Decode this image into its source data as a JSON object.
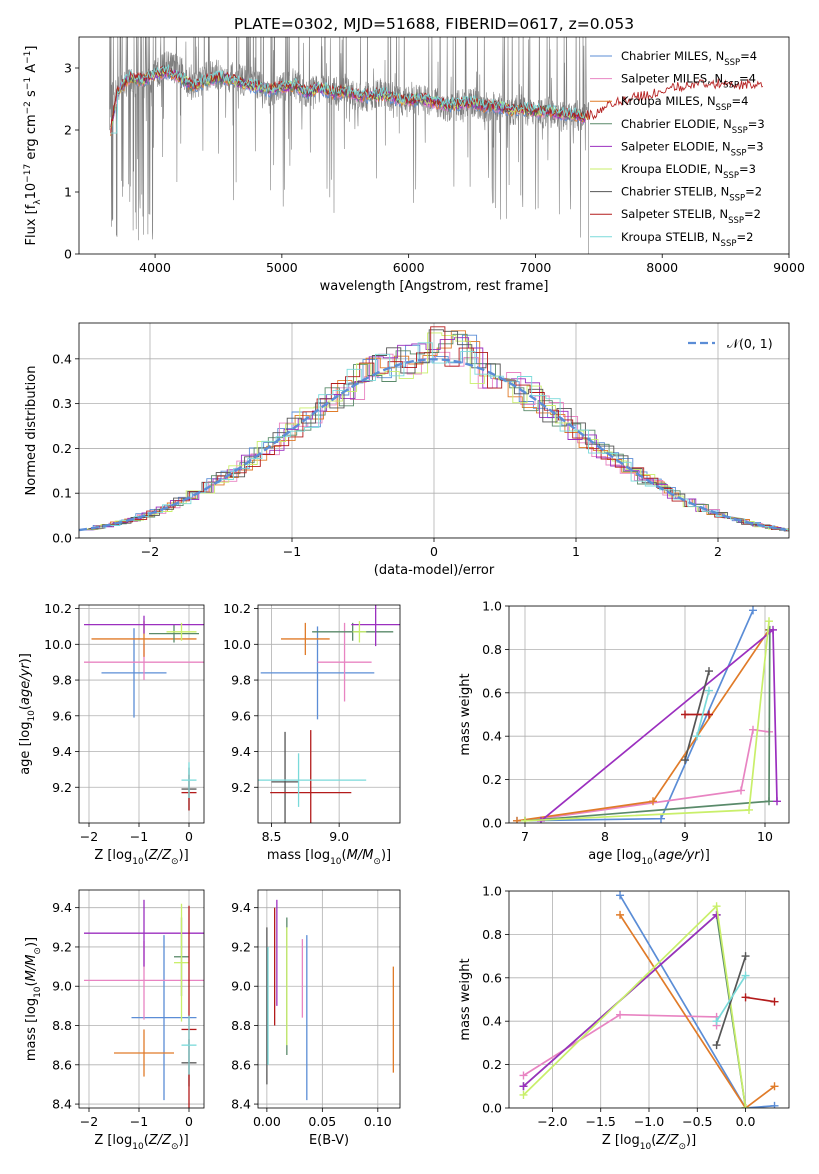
{
  "title": "PLATE=0302, MJD=51688, FIBERID=0617, z=0.053",
  "colors": {
    "chabrier_miles": "#5b8dd6",
    "salpeter_miles": "#e884c2",
    "kroupa_miles": "#e07b29",
    "chabrier_elodie": "#5a8a6a",
    "salpeter_elodie": "#9b2fbf",
    "kroupa_elodie": "#c9ef6a",
    "chabrier_stelib": "#555555",
    "salpeter_stelib": "#b31b1b",
    "kroupa_stelib": "#7adada",
    "data": "#808080",
    "normal": "#5b8dd6"
  },
  "legend": [
    {
      "prefix": "Chabrier MILES, N",
      "sub": "SSP",
      "suffix": "=4",
      "color": "#5b8dd6"
    },
    {
      "prefix": "Salpeter MILES, N",
      "sub": "SSP",
      "suffix": "=4",
      "color": "#e884c2"
    },
    {
      "prefix": "Kroupa MILES, N",
      "sub": "SSP",
      "suffix": "=4",
      "color": "#e07b29"
    },
    {
      "prefix": "Chabrier ELODIE, N",
      "sub": "SSP",
      "suffix": "=3",
      "color": "#5a8a6a"
    },
    {
      "prefix": "Salpeter ELODIE, N",
      "sub": "SSP",
      "suffix": "=3",
      "color": "#9b2fbf"
    },
    {
      "prefix": "Kroupa ELODIE, N",
      "sub": "SSP",
      "suffix": "=3",
      "color": "#c9ef6a"
    },
    {
      "prefix": "Chabrier STELIB, N",
      "sub": "SSP",
      "suffix": "=2",
      "color": "#555555"
    },
    {
      "prefix": "Salpeter STELIB, N",
      "sub": "SSP",
      "suffix": "=2",
      "color": "#b31b1b"
    },
    {
      "prefix": "Kroupa STELIB, N",
      "sub": "SSP",
      "suffix": "=2",
      "color": "#7adada"
    }
  ],
  "chart_data": [
    {
      "type": "line",
      "id": "spectrum",
      "title": "PLATE=0302, MJD=51688, FIBERID=0617, z=0.053",
      "xlabel": "wavelength [Angstrom, rest frame]",
      "ylabel": "Flux [f",
      "ylabel_parts": [
        "Flux [f",
        "λ",
        "10",
        "−17",
        " erg cm",
        "−2",
        " s",
        "−1",
        " A",
        "−1",
        "]"
      ],
      "xlim": [
        3400,
        9000
      ],
      "ylim": [
        0,
        3.5
      ],
      "xticks": [
        4000,
        5000,
        6000,
        7000,
        8000,
        9000
      ],
      "yticks": [
        0,
        1,
        2,
        3
      ],
      "grid": false,
      "legend_position": "top-right",
      "data_range": [
        3640,
        7420
      ],
      "data_points": [
        [
          3650,
          2.5
        ],
        [
          3700,
          2.6
        ],
        [
          3800,
          2.8
        ],
        [
          3900,
          2.7
        ],
        [
          4000,
          2.9
        ],
        [
          4100,
          3.05
        ],
        [
          4200,
          2.95
        ],
        [
          4300,
          2.7
        ],
        [
          4400,
          2.85
        ],
        [
          4500,
          2.9
        ],
        [
          4600,
          2.85
        ],
        [
          4700,
          2.8
        ],
        [
          4800,
          2.75
        ],
        [
          4900,
          2.6
        ],
        [
          5000,
          2.7
        ],
        [
          5100,
          2.75
        ],
        [
          5200,
          2.55
        ],
        [
          5300,
          2.7
        ],
        [
          5400,
          2.6
        ],
        [
          5500,
          2.65
        ],
        [
          5600,
          2.5
        ],
        [
          5700,
          2.55
        ],
        [
          5800,
          2.6
        ],
        [
          5900,
          2.5
        ],
        [
          6000,
          2.45
        ],
        [
          6100,
          2.5
        ],
        [
          6200,
          2.45
        ],
        [
          6300,
          2.35
        ],
        [
          6400,
          2.4
        ],
        [
          6500,
          2.45
        ],
        [
          6600,
          2.35
        ],
        [
          6700,
          2.4
        ],
        [
          6800,
          2.3
        ],
        [
          6900,
          2.35
        ],
        [
          7000,
          2.25
        ],
        [
          7100,
          2.3
        ],
        [
          7200,
          2.2
        ],
        [
          7300,
          2.25
        ],
        [
          7400,
          2.2
        ]
      ],
      "model_points": [
        [
          3650,
          2.0
        ],
        [
          3700,
          2.6
        ],
        [
          3800,
          2.85
        ],
        [
          3900,
          2.8
        ],
        [
          4000,
          2.9
        ],
        [
          4100,
          2.95
        ],
        [
          4200,
          2.85
        ],
        [
          4300,
          2.7
        ],
        [
          4400,
          2.8
        ],
        [
          4500,
          2.85
        ],
        [
          4600,
          2.8
        ],
        [
          4700,
          2.75
        ],
        [
          4800,
          2.7
        ],
        [
          4900,
          2.65
        ],
        [
          5000,
          2.7
        ],
        [
          5100,
          2.72
        ],
        [
          5200,
          2.6
        ],
        [
          5300,
          2.68
        ],
        [
          5400,
          2.6
        ],
        [
          5500,
          2.62
        ],
        [
          5600,
          2.55
        ],
        [
          5700,
          2.55
        ],
        [
          5800,
          2.58
        ],
        [
          5900,
          2.5
        ],
        [
          6000,
          2.48
        ],
        [
          6100,
          2.5
        ],
        [
          6200,
          2.45
        ],
        [
          6300,
          2.4
        ],
        [
          6400,
          2.42
        ],
        [
          6500,
          2.45
        ],
        [
          6600,
          2.38
        ],
        [
          6700,
          2.38
        ],
        [
          6800,
          2.33
        ],
        [
          6900,
          2.35
        ],
        [
          7000,
          2.3
        ],
        [
          7100,
          2.3
        ],
        [
          7200,
          2.25
        ],
        [
          7300,
          2.25
        ],
        [
          7400,
          2.2
        ],
        [
          7500,
          2.25
        ],
        [
          7600,
          2.4
        ],
        [
          7700,
          2.45
        ],
        [
          7800,
          2.5
        ],
        [
          7900,
          2.55
        ],
        [
          8000,
          2.6
        ],
        [
          8100,
          2.65
        ],
        [
          8200,
          2.7
        ],
        [
          8300,
          2.75
        ],
        [
          8400,
          2.7
        ],
        [
          8500,
          2.75
        ],
        [
          8600,
          2.7
        ],
        [
          8700,
          2.72
        ],
        [
          8800,
          2.7
        ]
      ]
    },
    {
      "type": "line",
      "id": "residuals",
      "xlabel": "(data-model)/error",
      "ylabel": "Normed distribution",
      "xlim": [
        -2.5,
        2.5
      ],
      "ylim": [
        0,
        0.48
      ],
      "xticks": [
        -2,
        -1,
        0,
        1,
        2
      ],
      "yticks": [
        0.0,
        0.1,
        0.2,
        0.3,
        0.4
      ],
      "grid": true,
      "legend_position": "top-right",
      "normal_label": "𝒩(0, 1)",
      "normal_mu": 0,
      "normal_sigma": 1,
      "hist_bin_width": 0.1
    },
    {
      "type": "scatter",
      "id": "z-age",
      "xlabel": "Z [log",
      "xlabel_parts": [
        "Z [log",
        "10",
        "(Z/Z",
        "⊙",
        ")]"
      ],
      "ylabel_parts": [
        "age  [log",
        "10",
        "(age/yr)]"
      ],
      "xlim": [
        -2.2,
        0.3
      ],
      "ylim": [
        9.0,
        10.22
      ],
      "xticks": [
        -2,
        -1,
        0
      ],
      "yticks": [
        9.2,
        9.4,
        9.6,
        9.8,
        10.0,
        10.2
      ],
      "grid": true,
      "points": [
        {
          "x": -1.1,
          "y": 9.84,
          "xerr": 0.65,
          "yerr": 0.25,
          "color": "#5b8dd6"
        },
        {
          "x": -0.9,
          "y": 9.9,
          "xerr": 1.2,
          "yerr": 0.1,
          "color": "#e884c2"
        },
        {
          "x": -0.9,
          "y": 10.03,
          "xerr": 1.05,
          "yerr": 0.1,
          "color": "#e07b29"
        },
        {
          "x": -0.3,
          "y": 10.06,
          "xerr": 0.5,
          "yerr": 0.05,
          "color": "#5a8a6a"
        },
        {
          "x": -0.9,
          "y": 10.11,
          "xerr": 1.2,
          "yerr": 0.05,
          "color": "#9b2fbf"
        },
        {
          "x": -0.15,
          "y": 10.07,
          "xerr": 0.3,
          "yerr": 0.05,
          "color": "#c9ef6a"
        },
        {
          "x": 0.0,
          "y": 9.19,
          "xerr": 0.15,
          "yerr": 0.12,
          "color": "#555555"
        },
        {
          "x": 0.0,
          "y": 9.17,
          "xerr": 0.15,
          "yerr": 0.1,
          "color": "#b31b1b"
        },
        {
          "x": 0.0,
          "y": 9.24,
          "xerr": 0.15,
          "yerr": 0.1,
          "color": "#7adada"
        }
      ]
    },
    {
      "type": "scatter",
      "id": "mass-age",
      "xlabel_parts": [
        "mass [log",
        "10",
        "(M/M",
        "⊙",
        ")]"
      ],
      "xlim": [
        8.4,
        9.45
      ],
      "ylim": [
        9.0,
        10.22
      ],
      "xticks": [
        8.5,
        9.0
      ],
      "yticks": [
        9.2,
        9.4,
        9.6,
        9.8,
        10.0,
        10.2
      ],
      "grid": true,
      "points": [
        {
          "x": 8.84,
          "y": 9.84,
          "xerr": 0.42,
          "yerr": 0.26,
          "color": "#5b8dd6"
        },
        {
          "x": 9.04,
          "y": 9.9,
          "xerr": 0.2,
          "yerr": 0.22,
          "color": "#e884c2"
        },
        {
          "x": 8.75,
          "y": 10.03,
          "xerr": 0.18,
          "yerr": 0.09,
          "color": "#e07b29"
        },
        {
          "x": 9.1,
          "y": 10.07,
          "xerr": 0.3,
          "yerr": 0.05,
          "color": "#5a8a6a"
        },
        {
          "x": 9.27,
          "y": 10.11,
          "xerr": 0.18,
          "yerr": 0.12,
          "color": "#9b2fbf"
        },
        {
          "x": 9.15,
          "y": 10.07,
          "xerr": 0.05,
          "yerr": 0.06,
          "color": "#c9ef6a"
        },
        {
          "x": 8.6,
          "y": 9.23,
          "xerr": 0.1,
          "yerr": 0.28,
          "color": "#555555"
        },
        {
          "x": 8.79,
          "y": 9.17,
          "xerr": 0.3,
          "yerr": 0.35,
          "color": "#b31b1b"
        },
        {
          "x": 8.7,
          "y": 9.24,
          "xerr": 0.5,
          "yerr": 0.15,
          "color": "#7adada"
        }
      ]
    },
    {
      "type": "line",
      "id": "age-massweight",
      "xlabel_parts": [
        "age  [log",
        "10",
        "(age/yr)]"
      ],
      "ylabel": "mass weight",
      "xlim": [
        6.8,
        10.3
      ],
      "ylim": [
        0.0,
        1.0
      ],
      "xticks": [
        7,
        8,
        9,
        10
      ],
      "yticks": [
        0.0,
        0.2,
        0.4,
        0.6,
        0.8,
        1.0
      ],
      "grid": true,
      "series": [
        {
          "color": "#5b8dd6",
          "x": [
            6.9,
            8.7,
            9.85
          ],
          "y": [
            0.01,
            0.02,
            0.98
          ]
        },
        {
          "color": "#e884c2",
          "x": [
            7.0,
            9.7,
            9.85,
            10.05
          ],
          "y": [
            0.01,
            0.15,
            0.43,
            0.42
          ]
        },
        {
          "color": "#e07b29",
          "x": [
            6.9,
            8.6,
            10.05
          ],
          "y": [
            0.01,
            0.1,
            0.89
          ]
        },
        {
          "color": "#5a8a6a",
          "x": [
            7.0,
            10.05,
            10.06
          ],
          "y": [
            0.01,
            0.1,
            0.89
          ]
        },
        {
          "color": "#9b2fbf",
          "x": [
            7.2,
            10.1,
            10.15
          ],
          "y": [
            0.01,
            0.89,
            0.1
          ]
        },
        {
          "color": "#c9ef6a",
          "x": [
            7.0,
            9.8,
            10.05
          ],
          "y": [
            0.01,
            0.06,
            0.93
          ]
        },
        {
          "color": "#555555",
          "x": [
            9.0,
            9.3
          ],
          "y": [
            0.29,
            0.7
          ]
        },
        {
          "color": "#b31b1b",
          "x": [
            9.0,
            9.3
          ],
          "y": [
            0.5,
            0.5
          ]
        },
        {
          "color": "#7adada",
          "x": [
            9.15,
            9.3
          ],
          "y": [
            0.4,
            0.61
          ]
        }
      ]
    },
    {
      "type": "scatter",
      "id": "z-mass",
      "xlabel_parts": [
        "Z [log",
        "10",
        "(Z/Z",
        "⊙",
        ")]"
      ],
      "ylabel_parts": [
        "mass [log",
        "10",
        "(M/M",
        "⊙",
        ")]"
      ],
      "xlim": [
        -2.2,
        0.3
      ],
      "ylim": [
        8.38,
        9.49
      ],
      "xticks": [
        -2,
        -1,
        0
      ],
      "yticks": [
        8.4,
        8.6,
        8.8,
        9.0,
        9.2,
        9.4
      ],
      "grid": true,
      "points": [
        {
          "x": -0.5,
          "y": 8.84,
          "xerr": 0.65,
          "yerr": 0.42,
          "color": "#5b8dd6"
        },
        {
          "x": -0.9,
          "y": 9.03,
          "xerr": 1.2,
          "yerr": 0.2,
          "color": "#e884c2"
        },
        {
          "x": -0.9,
          "y": 8.66,
          "xerr": 0.6,
          "yerr": 0.12,
          "color": "#e07b29"
        },
        {
          "x": -0.15,
          "y": 9.15,
          "xerr": 0.15,
          "yerr": 0.2,
          "color": "#5a8a6a"
        },
        {
          "x": -0.9,
          "y": 9.27,
          "xerr": 1.2,
          "yerr": 0.17,
          "color": "#9b2fbf"
        },
        {
          "x": -0.15,
          "y": 9.12,
          "xerr": 0.15,
          "yerr": 0.3,
          "color": "#c9ef6a"
        },
        {
          "x": 0.0,
          "y": 8.61,
          "xerr": 0.15,
          "yerr": 0.12,
          "color": "#555555"
        },
        {
          "x": 0.0,
          "y": 8.78,
          "xerr": 0.15,
          "yerr": 0.63,
          "color": "#b31b1b"
        },
        {
          "x": 0.0,
          "y": 8.7,
          "xerr": 0.15,
          "yerr": 0.15,
          "color": "#7adada"
        }
      ]
    },
    {
      "type": "scatter",
      "id": "ebv-mass",
      "xlabel": "E(B-V)",
      "xlim": [
        -0.008,
        0.12
      ],
      "ylim": [
        8.38,
        9.49
      ],
      "xticks": [
        0.0,
        0.05,
        0.1
      ],
      "xtick_labels": [
        "0.00",
        "0.05",
        "0.10"
      ],
      "yticks": [
        8.4,
        8.6,
        8.8,
        9.0,
        9.2,
        9.4
      ],
      "grid": true,
      "points": [
        {
          "x": 0.036,
          "y": 8.84,
          "xerr": 0.0,
          "yerr": 0.42,
          "color": "#5b8dd6"
        },
        {
          "x": 0.032,
          "y": 9.04,
          "xerr": 0.0,
          "yerr": 0.2,
          "color": "#e884c2"
        },
        {
          "x": 0.114,
          "y": 8.83,
          "xerr": 0.0,
          "yerr": 0.27,
          "color": "#e07b29"
        },
        {
          "x": 0.018,
          "y": 9.0,
          "xerr": 0.0,
          "yerr": 0.35,
          "color": "#5a8a6a"
        },
        {
          "x": 0.009,
          "y": 9.17,
          "xerr": 0.0,
          "yerr": 0.27,
          "color": "#9b2fbf"
        },
        {
          "x": 0.018,
          "y": 9.0,
          "xerr": 0.0,
          "yerr": 0.3,
          "color": "#c9ef6a"
        },
        {
          "x": 0.0,
          "y": 8.9,
          "xerr": 0.0,
          "yerr": 0.4,
          "color": "#555555"
        },
        {
          "x": 0.007,
          "y": 9.1,
          "xerr": 0.0,
          "yerr": 0.3,
          "color": "#b31b1b"
        },
        {
          "x": 0.001,
          "y": 8.9,
          "xerr": 0.0,
          "yerr": 0.3,
          "color": "#7adada"
        }
      ]
    },
    {
      "type": "line",
      "id": "z-massweight",
      "xlabel_parts": [
        "Z [log",
        "10",
        "(Z/Z",
        "⊙",
        ")]"
      ],
      "ylabel": "mass weight",
      "xlim": [
        -2.45,
        0.45
      ],
      "ylim": [
        0.0,
        1.0
      ],
      "xticks": [
        -2.0,
        -1.5,
        -1.0,
        -0.5,
        0.0
      ],
      "xtick_labels": [
        "−2.0",
        "−1.5",
        "−1.0",
        "−0.5",
        "0.0"
      ],
      "yticks": [
        0.0,
        0.2,
        0.4,
        0.6,
        0.8,
        1.0
      ],
      "grid": true,
      "series": [
        {
          "color": "#5b8dd6",
          "x": [
            -1.3,
            0.0,
            0.3
          ],
          "y": [
            0.98,
            0.0,
            0.01
          ]
        },
        {
          "color": "#e884c2",
          "x": [
            -2.3,
            -1.3,
            -0.3,
            -0.3
          ],
          "y": [
            0.15,
            0.43,
            0.42,
            0.38
          ]
        },
        {
          "color": "#e07b29",
          "x": [
            -1.3,
            0.0,
            0.3
          ],
          "y": [
            0.89,
            0.0,
            0.1
          ]
        },
        {
          "color": "#5a8a6a",
          "x": [
            -2.3,
            -0.3,
            0.0
          ],
          "y": [
            0.1,
            0.89,
            0.0
          ]
        },
        {
          "color": "#9b2fbf",
          "x": [
            -2.3,
            -0.3
          ],
          "y": [
            0.1,
            0.89
          ]
        },
        {
          "color": "#c9ef6a",
          "x": [
            -2.3,
            -0.3,
            0.0
          ],
          "y": [
            0.06,
            0.93,
            0.0
          ]
        },
        {
          "color": "#555555",
          "x": [
            -0.3,
            0.0
          ],
          "y": [
            0.29,
            0.7
          ]
        },
        {
          "color": "#b31b1b",
          "x": [
            0.0,
            0.3
          ],
          "y": [
            0.51,
            0.49
          ]
        },
        {
          "color": "#7adada",
          "x": [
            -0.3,
            0.0
          ],
          "y": [
            0.4,
            0.61
          ]
        }
      ]
    }
  ]
}
